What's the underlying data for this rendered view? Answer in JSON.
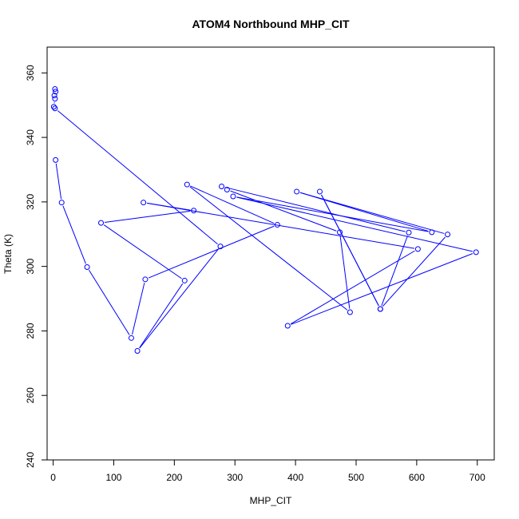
{
  "chart_data": {
    "type": "line",
    "title": "ATOM4 Northbound MHP_CIT",
    "xlabel": "MHP_CIT",
    "ylabel": "Theta (K)",
    "xlim": [
      -10,
      728
    ],
    "ylim": [
      240,
      368
    ],
    "x_ticks": [
      "0",
      "100",
      "200",
      "300",
      "400",
      "500",
      "600",
      "700"
    ],
    "y_ticks": [
      "240",
      "260",
      "280",
      "300",
      "320",
      "340",
      "360"
    ],
    "series": [
      {
        "color": "#0000ff",
        "marker": "open-circle",
        "points": [
          {
            "x": 3,
            "y": 355.0
          },
          {
            "x": 4,
            "y": 354.2
          },
          {
            "x": 2,
            "y": 353.0
          },
          {
            "x": 3,
            "y": 352.0
          },
          {
            "x": 1,
            "y": 349.5
          },
          {
            "x": 3,
            "y": 349.0
          },
          {
            "x": 276,
            "y": 306.2
          },
          {
            "x": 139,
            "y": 273.8
          },
          {
            "x": 217,
            "y": 295.6
          },
          {
            "x": 79,
            "y": 313.5
          },
          {
            "x": 232,
            "y": 317.3
          },
          {
            "x": 149,
            "y": 319.8
          },
          {
            "x": 602,
            "y": 305.4
          },
          {
            "x": 387,
            "y": 281.6
          },
          {
            "x": 698,
            "y": 304.4
          },
          {
            "x": 297,
            "y": 321.7
          },
          {
            "x": 625,
            "y": 310.6
          },
          {
            "x": 402,
            "y": 323.2
          },
          {
            "x": 651,
            "y": 309.9
          },
          {
            "x": 540,
            "y": 286.8
          },
          {
            "x": 440,
            "y": 323.2
          },
          {
            "x": 540,
            "y": 286.8
          },
          {
            "x": 587,
            "y": 310.5
          },
          {
            "x": 278,
            "y": 324.8
          },
          {
            "x": 287,
            "y": 323.8
          },
          {
            "x": 473,
            "y": 310.6
          },
          {
            "x": 490,
            "y": 285.8
          },
          {
            "x": 221,
            "y": 325.4
          },
          {
            "x": 370,
            "y": 312.9
          },
          {
            "x": 152,
            "y": 296.0
          },
          {
            "x": 129,
            "y": 277.8
          },
          {
            "x": 56,
            "y": 299.8
          },
          {
            "x": 14,
            "y": 319.8
          },
          {
            "x": 4,
            "y": 333.0
          }
        ]
      }
    ]
  }
}
